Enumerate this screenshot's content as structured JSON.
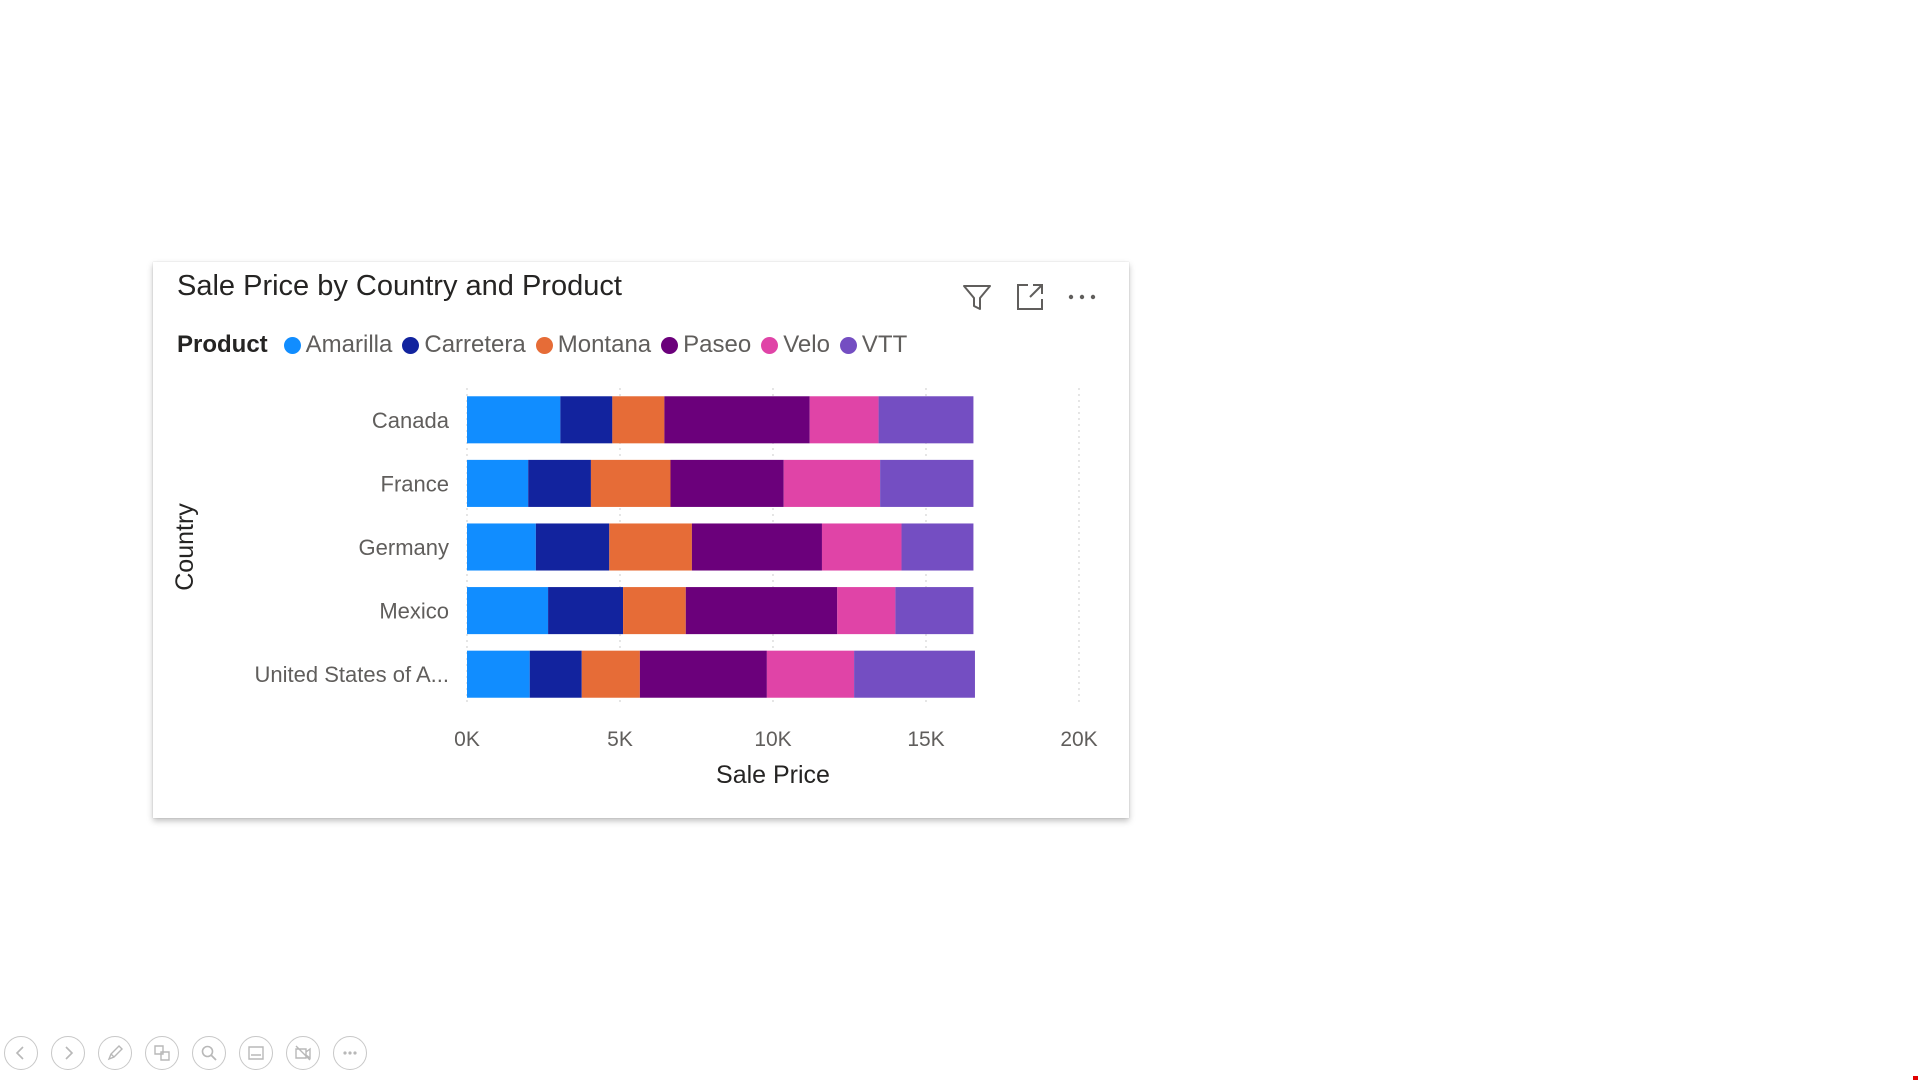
{
  "visual": {
    "title": "Sale Price by Country and Product",
    "toolbar": {
      "filter_icon": "filter-icon",
      "focus_icon": "focus-mode-icon",
      "more_icon": "more-options-icon"
    }
  },
  "legend": {
    "title": "Product",
    "items": [
      {
        "label": "Amarilla",
        "color": "#118dff"
      },
      {
        "label": "Carretera",
        "color": "#12239e"
      },
      {
        "label": "Montana",
        "color": "#e66c37"
      },
      {
        "label": "Paseo",
        "color": "#6b007b"
      },
      {
        "label": "Velo",
        "color": "#e044a7"
      },
      {
        "label": "VTT",
        "color": "#744ec2"
      }
    ]
  },
  "chart_data": {
    "type": "bar",
    "orientation": "horizontal",
    "stacked": true,
    "title": "Sale Price by Country and Product",
    "xlabel": "Sale Price",
    "ylabel": "Country",
    "xlim": [
      0,
      20000
    ],
    "xticks": [
      {
        "value": 0,
        "label": "0K"
      },
      {
        "value": 5000,
        "label": "5K"
      },
      {
        "value": 10000,
        "label": "10K"
      },
      {
        "value": 15000,
        "label": "15K"
      },
      {
        "value": 20000,
        "label": "20K"
      }
    ],
    "grid": true,
    "legend_position": "top-left",
    "categories": [
      "Canada",
      "France",
      "Germany",
      "Mexico",
      "United States of A..."
    ],
    "series": [
      {
        "name": "Amarilla",
        "color": "#118dff",
        "values": [
          3050,
          2000,
          2250,
          2650,
          2050
        ]
      },
      {
        "name": "Carretera",
        "color": "#12239e",
        "values": [
          1700,
          2050,
          2400,
          2450,
          1700
        ]
      },
      {
        "name": "Montana",
        "color": "#e66c37",
        "values": [
          1700,
          2600,
          2700,
          2050,
          1900
        ]
      },
      {
        "name": "Paseo",
        "color": "#6b007b",
        "values": [
          4750,
          3700,
          4250,
          4950,
          4150
        ]
      },
      {
        "name": "Velo",
        "color": "#e044a7",
        "values": [
          2250,
          3150,
          2600,
          1900,
          2850
        ]
      },
      {
        "name": "VTT",
        "color": "#744ec2",
        "values": [
          3100,
          3050,
          2350,
          2550,
          3950
        ]
      }
    ]
  },
  "presenter_toolbar": {
    "buttons": [
      {
        "name": "previous-slide-button",
        "icon": "chevron-left-icon"
      },
      {
        "name": "next-slide-button",
        "icon": "chevron-right-icon"
      },
      {
        "name": "pen-tool-button",
        "icon": "pen-icon"
      },
      {
        "name": "see-all-slides-button",
        "icon": "slides-grid-icon"
      },
      {
        "name": "zoom-button",
        "icon": "magnifier-icon"
      },
      {
        "name": "subtitles-button",
        "icon": "subtitles-icon"
      },
      {
        "name": "camera-toggle-button",
        "icon": "camera-off-icon"
      },
      {
        "name": "more-options-button",
        "icon": "more-icon"
      }
    ]
  }
}
